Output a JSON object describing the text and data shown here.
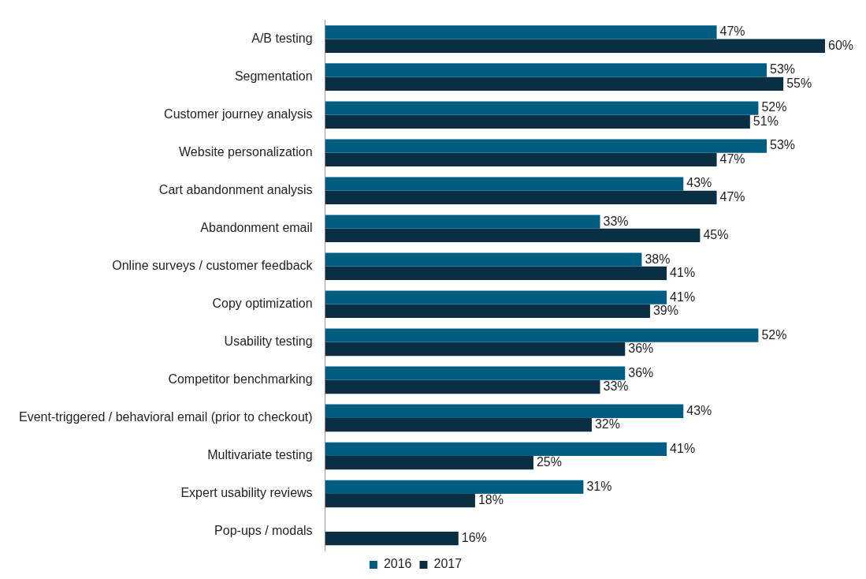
{
  "chart_data": {
    "type": "bar",
    "orientation": "horizontal",
    "categories": [
      "A/B testing",
      "Segmentation",
      "Customer journey analysis",
      "Website personalization",
      "Cart abandonment analysis",
      "Abandonment email",
      "Online surveys / customer feedback",
      "Copy optimization",
      "Usability testing",
      "Competitor benchmarking",
      "Event-triggered / behavioral email (prior to checkout)",
      "Multivariate testing",
      "Expert usability reviews",
      "Pop-ups / modals"
    ],
    "series": [
      {
        "name": "2016",
        "color": "#005c82",
        "values": [
          47,
          53,
          52,
          53,
          43,
          33,
          38,
          41,
          52,
          36,
          43,
          41,
          31,
          null
        ],
        "value_labels": [
          "47%",
          "53%",
          "52%",
          "53%",
          "43%",
          "33%",
          "38%",
          "41%",
          "52%",
          "36%",
          "43%",
          "41%",
          "31%",
          null
        ]
      },
      {
        "name": "2017",
        "color": "#0a2e42",
        "values": [
          60,
          55,
          51,
          47,
          47,
          45,
          41,
          39,
          36,
          33,
          32,
          25,
          18,
          16
        ],
        "value_labels": [
          "60%",
          "55%",
          "51%",
          "47%",
          "47%",
          "45%",
          "41%",
          "39%",
          "36%",
          "33%",
          "32%",
          "25%",
          "18%",
          "16%"
        ]
      }
    ],
    "legend": "bottom",
    "grid": false
  }
}
